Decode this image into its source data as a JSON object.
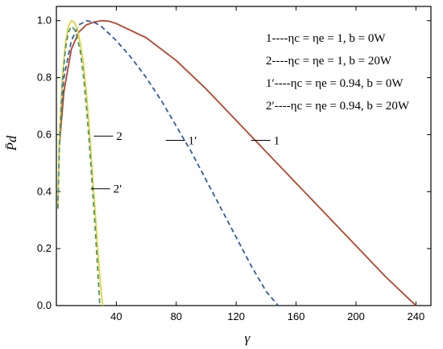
{
  "chart_data": {
    "type": "line",
    "xlabel": "γ",
    "ylabel": "P̄d",
    "xlim": [
      0,
      250
    ],
    "ylim": [
      0,
      1.05
    ],
    "xticks": [
      40,
      80,
      120,
      160,
      200,
      240
    ],
    "xtick_labels": [
      "40",
      "80",
      "120",
      "160",
      "200",
      "240"
    ],
    "yticks": [
      0.0,
      0.2,
      0.4,
      0.6,
      0.8,
      1.0
    ],
    "ytick_labels": [
      "0.0",
      "0.2",
      "0.4",
      "0.6",
      "0.8",
      "1.0"
    ],
    "grid": false,
    "legend_position": "top-right",
    "legend": [
      {
        "text": "1----ηc = ηe = 1,  b = 0W"
      },
      {
        "text": "2----ηc = ηe = 1,  b = 20W"
      },
      {
        "text": "1′----ηc = ηe = 0.94,  b = 0W"
      },
      {
        "text": "2′----ηc = ηe = 0.94,  b = 20W"
      }
    ],
    "series": [
      {
        "name": "1",
        "color": "#b5452b",
        "style": "solid",
        "x": [
          2,
          5,
          10,
          15,
          20,
          25,
          30,
          35,
          40,
          60,
          80,
          100,
          120,
          140,
          160,
          180,
          200,
          220,
          240
        ],
        "y": [
          0.56,
          0.75,
          0.9,
          0.96,
          0.985,
          0.995,
          1.0,
          0.998,
          0.99,
          0.94,
          0.86,
          0.76,
          0.65,
          0.54,
          0.43,
          0.32,
          0.21,
          0.1,
          0.0
        ]
      },
      {
        "name": "1′",
        "color": "#2e5d9e",
        "style": "dashed",
        "x": [
          2,
          5,
          10,
          15,
          20,
          25,
          30,
          40,
          50,
          60,
          70,
          80,
          90,
          100,
          110,
          120,
          130,
          140,
          148
        ],
        "y": [
          0.6,
          0.8,
          0.93,
          0.985,
          1.0,
          0.995,
          0.98,
          0.93,
          0.87,
          0.8,
          0.72,
          0.63,
          0.54,
          0.44,
          0.34,
          0.24,
          0.14,
          0.05,
          0.0
        ]
      },
      {
        "name": "2",
        "color": "#e2d23a",
        "style": "solid",
        "x": [
          1,
          2,
          4,
          6,
          8,
          10,
          12,
          14,
          16,
          18,
          20,
          22,
          24,
          26,
          28,
          30,
          31
        ],
        "y": [
          0.35,
          0.58,
          0.8,
          0.92,
          0.98,
          1.0,
          0.995,
          0.97,
          0.92,
          0.85,
          0.75,
          0.62,
          0.47,
          0.32,
          0.17,
          0.04,
          0.0
        ]
      },
      {
        "name": "2′",
        "color": "#4a9a63",
        "style": "dashed",
        "x": [
          1,
          2,
          4,
          6,
          8,
          10,
          12,
          14,
          16,
          18,
          20,
          22,
          24,
          26,
          28,
          29
        ],
        "y": [
          0.34,
          0.56,
          0.78,
          0.9,
          0.96,
          0.98,
          0.97,
          0.94,
          0.89,
          0.81,
          0.7,
          0.57,
          0.42,
          0.26,
          0.09,
          0.0
        ]
      }
    ],
    "annotations": [
      {
        "text": "1",
        "x_data": 145,
        "y_data": 0.58
      },
      {
        "text": "1′",
        "x_data": 88,
        "y_data": 0.58
      },
      {
        "text": "2",
        "x_data": 40,
        "y_data": 0.595
      },
      {
        "text": "2′",
        "x_data": 38,
        "y_data": 0.41
      }
    ]
  }
}
